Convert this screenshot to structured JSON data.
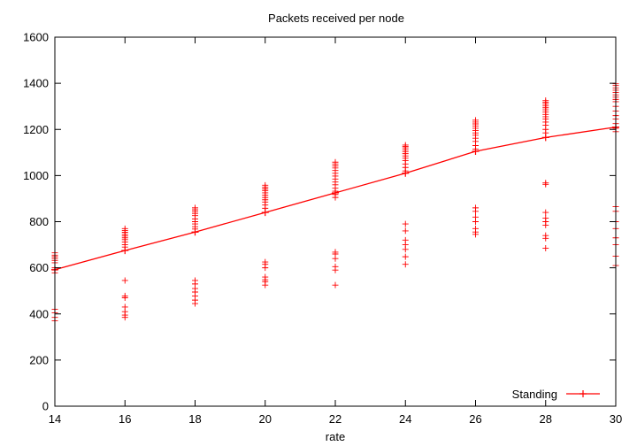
{
  "chart_data": {
    "type": "scatter",
    "title": "Packets received per node",
    "xlabel": "rate",
    "ylabel": "",
    "xlim": [
      14,
      30
    ],
    "ylim": [
      0,
      1600
    ],
    "xticks": [
      14,
      16,
      18,
      20,
      22,
      24,
      26,
      28,
      30
    ],
    "yticks": [
      0,
      200,
      400,
      600,
      800,
      1000,
      1200,
      1400,
      1600
    ],
    "grid": false,
    "legend": "bottom-right",
    "series": [
      {
        "name": "Standing",
        "color": "#ff0000",
        "style": "line+points",
        "x": [
          14,
          16,
          18,
          20,
          22,
          24,
          26,
          28,
          30
        ],
        "y": [
          592,
          675,
          755,
          840,
          925,
          1010,
          1105,
          1165,
          1210
        ]
      }
    ],
    "samples": {
      "color": "#ff0000",
      "marker": "plus",
      "points": [
        [
          14,
          665
        ],
        [
          14,
          655
        ],
        [
          14,
          648
        ],
        [
          14,
          640
        ],
        [
          14,
          632
        ],
        [
          14,
          622
        ],
        [
          14,
          600
        ],
        [
          14,
          590
        ],
        [
          14,
          578
        ],
        [
          14,
          420
        ],
        [
          14,
          405
        ],
        [
          14,
          385
        ],
        [
          14,
          370
        ],
        [
          16,
          770
        ],
        [
          16,
          762
        ],
        [
          16,
          754
        ],
        [
          16,
          745
        ],
        [
          16,
          738
        ],
        [
          16,
          730
        ],
        [
          16,
          722
        ],
        [
          16,
          712
        ],
        [
          16,
          700
        ],
        [
          16,
          690
        ],
        [
          16,
          545
        ],
        [
          16,
          478
        ],
        [
          16,
          470
        ],
        [
          16,
          430
        ],
        [
          16,
          410
        ],
        [
          16,
          395
        ],
        [
          16,
          385
        ],
        [
          18,
          860
        ],
        [
          18,
          852
        ],
        [
          18,
          845
        ],
        [
          18,
          836
        ],
        [
          18,
          826
        ],
        [
          18,
          812
        ],
        [
          18,
          800
        ],
        [
          18,
          790
        ],
        [
          18,
          778
        ],
        [
          18,
          768
        ],
        [
          18,
          545
        ],
        [
          18,
          530
        ],
        [
          18,
          510
        ],
        [
          18,
          495
        ],
        [
          18,
          478
        ],
        [
          18,
          460
        ],
        [
          18,
          445
        ],
        [
          20,
          958
        ],
        [
          20,
          950
        ],
        [
          20,
          942
        ],
        [
          20,
          934
        ],
        [
          20,
          925
        ],
        [
          20,
          915
        ],
        [
          20,
          905
        ],
        [
          20,
          895
        ],
        [
          20,
          885
        ],
        [
          20,
          872
        ],
        [
          20,
          858
        ],
        [
          20,
          625
        ],
        [
          20,
          615
        ],
        [
          20,
          600
        ],
        [
          20,
          560
        ],
        [
          20,
          548
        ],
        [
          20,
          540
        ],
        [
          20,
          525
        ],
        [
          22,
          1058
        ],
        [
          22,
          1050
        ],
        [
          22,
          1042
        ],
        [
          22,
          1033
        ],
        [
          22,
          1022
        ],
        [
          22,
          1010
        ],
        [
          22,
          998
        ],
        [
          22,
          985
        ],
        [
          22,
          972
        ],
        [
          22,
          960
        ],
        [
          22,
          945
        ],
        [
          22,
          932
        ],
        [
          22,
          918
        ],
        [
          22,
          905
        ],
        [
          22,
          668
        ],
        [
          22,
          660
        ],
        [
          22,
          640
        ],
        [
          22,
          605
        ],
        [
          22,
          590
        ],
        [
          22,
          525
        ],
        [
          24,
          1132
        ],
        [
          24,
          1126
        ],
        [
          24,
          1120
        ],
        [
          24,
          1112
        ],
        [
          24,
          1104
        ],
        [
          24,
          1095
        ],
        [
          24,
          1085
        ],
        [
          24,
          1075
        ],
        [
          24,
          1065
        ],
        [
          24,
          1050
        ],
        [
          24,
          1035
        ],
        [
          24,
          1020
        ],
        [
          24,
          790
        ],
        [
          24,
          760
        ],
        [
          24,
          720
        ],
        [
          24,
          700
        ],
        [
          24,
          680
        ],
        [
          24,
          648
        ],
        [
          24,
          615
        ],
        [
          26,
          1240
        ],
        [
          26,
          1232
        ],
        [
          26,
          1224
        ],
        [
          26,
          1215
        ],
        [
          26,
          1205
        ],
        [
          26,
          1195
        ],
        [
          26,
          1185
        ],
        [
          26,
          1175
        ],
        [
          26,
          1162
        ],
        [
          26,
          1148
        ],
        [
          26,
          1130
        ],
        [
          26,
          1115
        ],
        [
          26,
          860
        ],
        [
          26,
          845
        ],
        [
          26,
          820
        ],
        [
          26,
          800
        ],
        [
          26,
          770
        ],
        [
          26,
          755
        ],
        [
          26,
          745
        ],
        [
          28,
          1325
        ],
        [
          28,
          1318
        ],
        [
          28,
          1310
        ],
        [
          28,
          1302
        ],
        [
          28,
          1294
        ],
        [
          28,
          1285
        ],
        [
          28,
          1275
        ],
        [
          28,
          1265
        ],
        [
          28,
          1255
        ],
        [
          28,
          1245
        ],
        [
          28,
          1232
        ],
        [
          28,
          1218
        ],
        [
          28,
          1200
        ],
        [
          28,
          1185
        ],
        [
          28,
          968
        ],
        [
          28,
          962
        ],
        [
          28,
          840
        ],
        [
          28,
          815
        ],
        [
          28,
          800
        ],
        [
          28,
          785
        ],
        [
          28,
          740
        ],
        [
          28,
          728
        ],
        [
          28,
          685
        ],
        [
          30,
          1398
        ],
        [
          30,
          1390
        ],
        [
          30,
          1380
        ],
        [
          30,
          1370
        ],
        [
          30,
          1360
        ],
        [
          30,
          1350
        ],
        [
          30,
          1340
        ],
        [
          30,
          1330
        ],
        [
          30,
          1320
        ],
        [
          30,
          1300
        ],
        [
          30,
          1280
        ],
        [
          30,
          1260
        ],
        [
          30,
          1245
        ],
        [
          30,
          1225
        ],
        [
          30,
          1205
        ],
        [
          30,
          1190
        ],
        [
          30,
          865
        ],
        [
          30,
          845
        ],
        [
          30,
          800
        ],
        [
          30,
          770
        ],
        [
          30,
          730
        ],
        [
          30,
          700
        ],
        [
          30,
          650
        ],
        [
          30,
          610
        ]
      ]
    }
  }
}
